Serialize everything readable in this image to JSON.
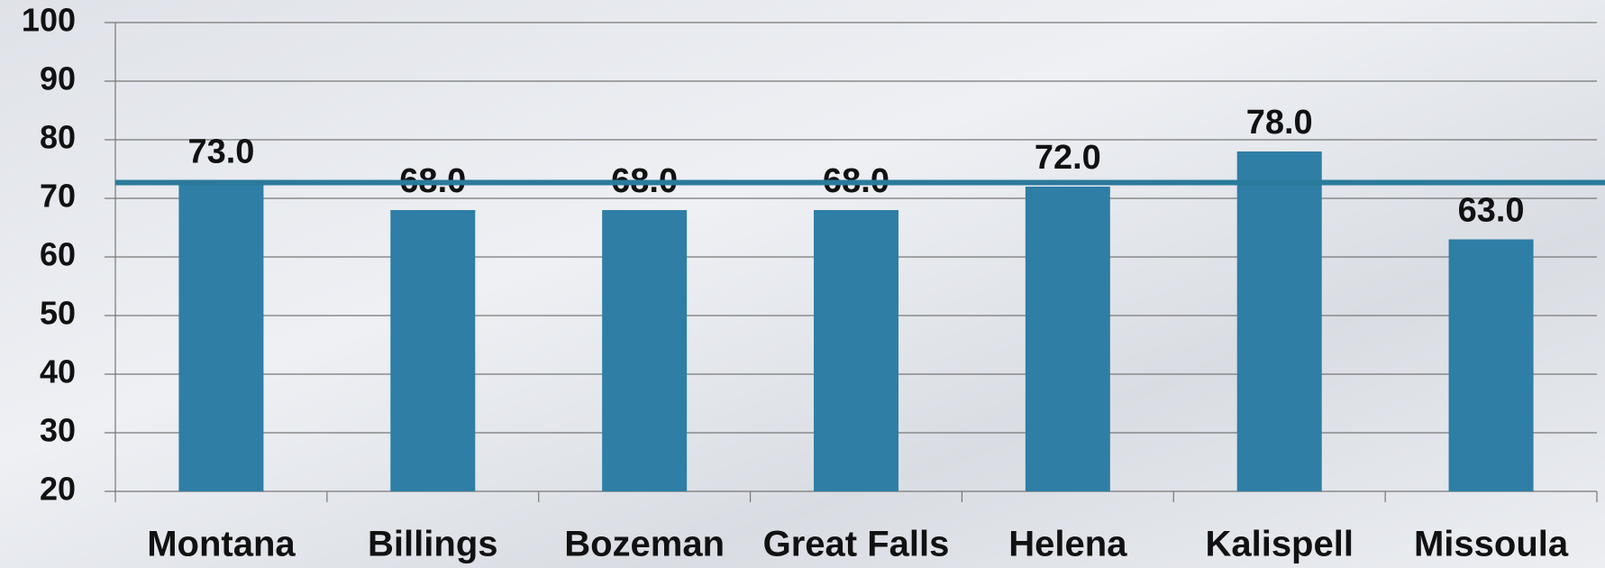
{
  "chart_data": {
    "type": "bar",
    "categories": [
      "Montana",
      "Billings",
      "Bozeman",
      "Great Falls",
      "Helena",
      "Kalispell",
      "Missoula"
    ],
    "values": [
      73,
      68,
      68,
      68,
      72,
      78,
      63
    ],
    "value_labels": [
      "73.0",
      "68.0",
      "68.0",
      "68.0",
      "72.0",
      "78.0",
      "63.0"
    ],
    "color": "#2e7ea6",
    "ylim": [
      20,
      100
    ],
    "yticks": [
      20,
      30,
      40,
      50,
      60,
      70,
      80,
      90,
      100
    ],
    "grid": true,
    "reference_line": {
      "value": 72.7,
      "color": "#2a7a9c"
    }
  }
}
